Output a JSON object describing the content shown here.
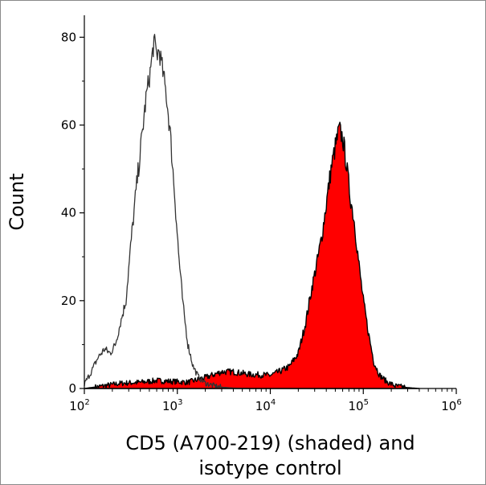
{
  "chart_data": {
    "type": "area",
    "title": "",
    "xlabel_lines": [
      "CD5 (A700-219) (shaded) and",
      "isotype control"
    ],
    "ylabel": "Count",
    "x_scale": "log",
    "xlim": [
      100,
      1000000
    ],
    "ylim": [
      0,
      85
    ],
    "x_ticks": [
      {
        "base": "10",
        "exp": "2"
      },
      {
        "base": "10",
        "exp": "3"
      },
      {
        "base": "10",
        "exp": "4"
      },
      {
        "base": "10",
        "exp": "5"
      },
      {
        "base": "10",
        "exp": "6"
      }
    ],
    "y_ticks": [
      "0",
      "20",
      "40",
      "60",
      "80"
    ],
    "grid": false,
    "series": [
      {
        "role": "isotype-control",
        "style": "outline",
        "line_color": "#333333",
        "points": [
          [
            100,
            1
          ],
          [
            120,
            4
          ],
          [
            140,
            7
          ],
          [
            165,
            9
          ],
          [
            190,
            8
          ],
          [
            215,
            10
          ],
          [
            245,
            15
          ],
          [
            280,
            20
          ],
          [
            320,
            34
          ],
          [
            360,
            45
          ],
          [
            410,
            56
          ],
          [
            460,
            66
          ],
          [
            510,
            72
          ],
          [
            560,
            79
          ],
          [
            600,
            76
          ],
          [
            640,
            77
          ],
          [
            700,
            72
          ],
          [
            760,
            67
          ],
          [
            840,
            58
          ],
          [
            930,
            45
          ],
          [
            1030,
            31
          ],
          [
            1150,
            19
          ],
          [
            1300,
            10
          ],
          [
            1480,
            5
          ],
          [
            1700,
            2.5
          ],
          [
            2000,
            1.2
          ],
          [
            2500,
            0.6
          ],
          [
            3000,
            0.3
          ],
          [
            4000,
            0.1
          ],
          [
            6000,
            0
          ]
        ]
      },
      {
        "role": "cd5-stained",
        "style": "filled",
        "fill_color": "#ff0000",
        "line_color": "#000000",
        "points": [
          [
            100,
            0
          ],
          [
            150,
            0.5
          ],
          [
            250,
            1.2
          ],
          [
            400,
            1.4
          ],
          [
            600,
            1.8
          ],
          [
            900,
            1.6
          ],
          [
            1300,
            1.4
          ],
          [
            2000,
            2.5
          ],
          [
            3000,
            3.8
          ],
          [
            4000,
            3.8
          ],
          [
            6000,
            3.2
          ],
          [
            8000,
            3.1
          ],
          [
            10000,
            3
          ],
          [
            13000,
            4
          ],
          [
            16000,
            5
          ],
          [
            20000,
            8
          ],
          [
            24000,
            15
          ],
          [
            28000,
            23
          ],
          [
            32000,
            29
          ],
          [
            36000,
            35
          ],
          [
            40000,
            42
          ],
          [
            45000,
            50
          ],
          [
            50000,
            55
          ],
          [
            55000,
            59
          ],
          [
            60000,
            57
          ],
          [
            65000,
            52
          ],
          [
            72000,
            44
          ],
          [
            80000,
            38
          ],
          [
            90000,
            28
          ],
          [
            100000,
            20
          ],
          [
            115000,
            12
          ],
          [
            130000,
            6
          ],
          [
            150000,
            3
          ],
          [
            180000,
            1.5
          ],
          [
            220000,
            0.6
          ],
          [
            300000,
            0.2
          ],
          [
            400000,
            0
          ]
        ]
      }
    ]
  }
}
